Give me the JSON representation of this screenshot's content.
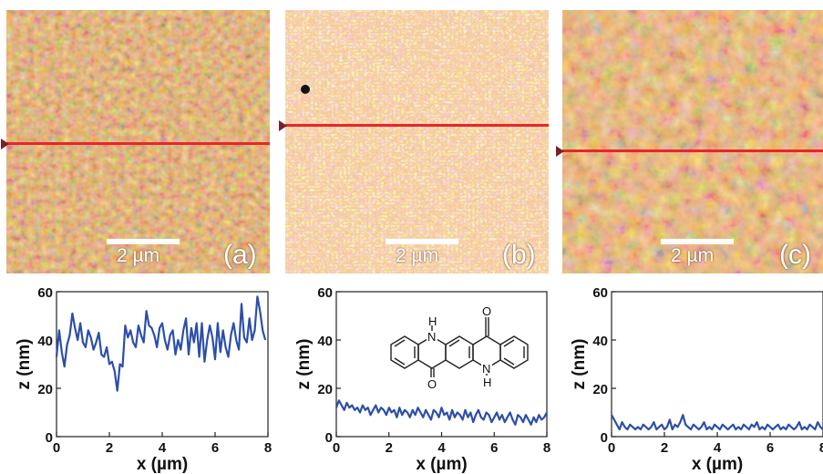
{
  "panels": [
    {
      "id": "a",
      "label": "(a)",
      "scalebar": "2 µm"
    },
    {
      "id": "b",
      "label": "(b)",
      "scalebar": "2 µm"
    },
    {
      "id": "c",
      "label": "(c)",
      "scalebar": "2 µm"
    }
  ],
  "molecule": {
    "atom_H_top": "H",
    "atom_N_top": "N",
    "atom_O_top": "O",
    "atom_O_bottom": "O",
    "atom_N_bottom": "N",
    "atom_H_bottom": "H"
  },
  "colors": {
    "afm_base": "#d98a46",
    "afm_light": "#f6c89a",
    "afm_dark": "#3c1a08",
    "profile_line": "#e8262b",
    "trace": "#2c4fa8"
  },
  "chart_data": [
    {
      "type": "line",
      "panel": "a",
      "xlabel": "x (µm)",
      "ylabel": "z (nm)",
      "xlim": [
        0,
        8
      ],
      "ylim": [
        0,
        60
      ],
      "xticks": [
        0,
        2,
        4,
        6,
        8
      ],
      "yticks": [
        0,
        20,
        40,
        60
      ],
      "series": [
        {
          "x": [
            0,
            0.1,
            0.2,
            0.3,
            0.4,
            0.5,
            0.6,
            0.7,
            0.8,
            0.9,
            1.0,
            1.1,
            1.2,
            1.3,
            1.4,
            1.5,
            1.6,
            1.7,
            1.8,
            1.9,
            2.0,
            2.1,
            2.2,
            2.3,
            2.4,
            2.5,
            2.6,
            2.7,
            2.8,
            2.9,
            3.0,
            3.1,
            3.2,
            3.3,
            3.4,
            3.5,
            3.6,
            3.7,
            3.8,
            3.9,
            4.0,
            4.1,
            4.2,
            4.3,
            4.4,
            4.5,
            4.6,
            4.7,
            4.8,
            4.9,
            5.0,
            5.1,
            5.2,
            5.3,
            5.4,
            5.5,
            5.6,
            5.7,
            5.8,
            5.9,
            6.0,
            6.1,
            6.2,
            6.3,
            6.4,
            6.5,
            6.6,
            6.7,
            6.8,
            6.9,
            7.0,
            7.1,
            7.2,
            7.3,
            7.4,
            7.5,
            7.6,
            7.7,
            7.8,
            7.9
          ],
          "y": [
            33,
            44,
            35,
            29,
            38,
            42,
            51,
            45,
            40,
            47,
            39,
            37,
            44,
            41,
            36,
            39,
            43,
            34,
            33,
            37,
            30,
            31,
            27,
            19,
            30,
            29,
            46,
            41,
            44,
            39,
            37,
            46,
            42,
            39,
            52,
            46,
            45,
            42,
            37,
            45,
            47,
            40,
            36,
            42,
            44,
            34,
            40,
            36,
            44,
            49,
            34,
            45,
            39,
            47,
            33,
            47,
            31,
            40,
            46,
            41,
            32,
            47,
            35,
            44,
            37,
            33,
            42,
            47,
            40,
            36,
            55,
            41,
            39,
            49,
            40,
            44,
            58,
            52,
            44,
            40
          ]
        }
      ]
    },
    {
      "type": "line",
      "panel": "b",
      "xlabel": "x (µm)",
      "ylabel": "z (nm)",
      "xlim": [
        0,
        8
      ],
      "ylim": [
        0,
        60
      ],
      "xticks": [
        0,
        2,
        4,
        6,
        8
      ],
      "yticks": [
        0,
        20,
        40,
        60
      ],
      "series": [
        {
          "x": [
            0,
            0.1,
            0.2,
            0.3,
            0.4,
            0.5,
            0.6,
            0.7,
            0.8,
            0.9,
            1.0,
            1.1,
            1.2,
            1.3,
            1.4,
            1.5,
            1.6,
            1.7,
            1.8,
            1.9,
            2.0,
            2.1,
            2.2,
            2.3,
            2.4,
            2.5,
            2.6,
            2.7,
            2.8,
            2.9,
            3.0,
            3.1,
            3.2,
            3.3,
            3.4,
            3.5,
            3.6,
            3.7,
            3.8,
            3.9,
            4.0,
            4.1,
            4.2,
            4.3,
            4.4,
            4.5,
            4.6,
            4.7,
            4.8,
            4.9,
            5.0,
            5.1,
            5.2,
            5.3,
            5.4,
            5.5,
            5.6,
            5.7,
            5.8,
            5.9,
            6.0,
            6.1,
            6.2,
            6.3,
            6.4,
            6.5,
            6.6,
            6.7,
            6.8,
            6.9,
            7.0,
            7.1,
            7.2,
            7.3,
            7.4,
            7.5,
            7.6,
            7.7,
            7.8,
            7.9,
            8.0
          ],
          "y": [
            12,
            15,
            13,
            11,
            14,
            12,
            13,
            11,
            12,
            10,
            13,
            11,
            12,
            9,
            11,
            13,
            10,
            12,
            11,
            9,
            12,
            10,
            11,
            8,
            12,
            9,
            11,
            10,
            8,
            11,
            9,
            12,
            10,
            8,
            11,
            9,
            7,
            11,
            10,
            8,
            12,
            9,
            10,
            7,
            11,
            8,
            10,
            9,
            7,
            11,
            8,
            10,
            6,
            9,
            11,
            8,
            7,
            10,
            9,
            6,
            8,
            10,
            7,
            9,
            6,
            8,
            10,
            7,
            5,
            9,
            8,
            6,
            9,
            7,
            5,
            8,
            6,
            9,
            7,
            8,
            10
          ]
        }
      ]
    },
    {
      "type": "line",
      "panel": "c",
      "xlabel": "x (µm)",
      "ylabel": "z (nm)",
      "xlim": [
        0,
        8
      ],
      "ylim": [
        0,
        60
      ],
      "xticks": [
        0,
        2,
        4,
        6,
        8
      ],
      "yticks": [
        0,
        20,
        40,
        60
      ],
      "series": [
        {
          "x": [
            0,
            0.1,
            0.2,
            0.3,
            0.4,
            0.5,
            0.6,
            0.7,
            0.8,
            0.9,
            1.0,
            1.1,
            1.2,
            1.3,
            1.4,
            1.5,
            1.6,
            1.7,
            1.8,
            1.9,
            2.0,
            2.1,
            2.2,
            2.3,
            2.4,
            2.5,
            2.6,
            2.7,
            2.8,
            2.9,
            3.0,
            3.1,
            3.2,
            3.3,
            3.4,
            3.5,
            3.6,
            3.7,
            3.8,
            3.9,
            4.0,
            4.1,
            4.2,
            4.3,
            4.4,
            4.5,
            4.6,
            4.7,
            4.8,
            4.9,
            5.0,
            5.1,
            5.2,
            5.3,
            5.4,
            5.5,
            5.6,
            5.7,
            5.8,
            5.9,
            6.0,
            6.1,
            6.2,
            6.3,
            6.4,
            6.5,
            6.6,
            6.7,
            6.8,
            6.9,
            7.0,
            7.1,
            7.2,
            7.3,
            7.4,
            7.5,
            7.6,
            7.7,
            7.8,
            7.9,
            8.0
          ],
          "y": [
            9,
            7,
            5,
            3,
            6,
            4,
            3,
            5,
            4,
            3,
            4,
            3,
            5,
            4,
            3,
            4,
            6,
            3,
            4,
            5,
            3,
            4,
            7,
            3,
            5,
            4,
            6,
            9,
            5,
            4,
            3,
            5,
            4,
            3,
            4,
            6,
            3,
            4,
            3,
            5,
            4,
            3,
            5,
            4,
            3,
            4,
            5,
            3,
            4,
            3,
            5,
            4,
            3,
            5,
            4,
            6,
            3,
            4,
            3,
            5,
            4,
            3,
            4,
            5,
            3,
            4,
            3,
            5,
            4,
            3,
            4,
            6,
            3,
            4,
            3,
            5,
            4,
            3,
            6,
            4,
            3
          ]
        }
      ]
    }
  ]
}
